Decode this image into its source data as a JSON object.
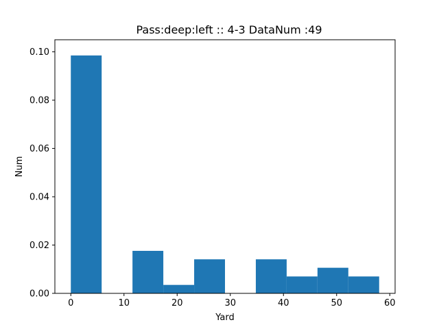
{
  "chart_data": {
    "type": "bar",
    "title": "Pass:deep:left :: 4-3    DataNum :49",
    "xlabel": "Yard",
    "ylabel": "Num",
    "xlim": [
      -3,
      61
    ],
    "ylim": [
      0,
      0.105
    ],
    "xticks": [
      0,
      10,
      20,
      30,
      40,
      50,
      60
    ],
    "yticks": [
      0.0,
      0.02,
      0.04,
      0.06,
      0.08,
      0.1
    ],
    "ytick_labels": [
      "0.00",
      "0.02",
      "0.04",
      "0.06",
      "0.08",
      "0.10"
    ],
    "bins": [
      {
        "x0": 0.0,
        "x1": 5.8,
        "value": 0.0985
      },
      {
        "x0": 5.8,
        "x1": 11.6,
        "value": 0.0
      },
      {
        "x0": 11.6,
        "x1": 17.4,
        "value": 0.0176
      },
      {
        "x0": 17.4,
        "x1": 23.2,
        "value": 0.0035
      },
      {
        "x0": 23.2,
        "x1": 29.0,
        "value": 0.0141
      },
      {
        "x0": 29.0,
        "x1": 34.8,
        "value": 0.0
      },
      {
        "x0": 34.8,
        "x1": 40.6,
        "value": 0.0141
      },
      {
        "x0": 40.6,
        "x1": 46.4,
        "value": 0.007
      },
      {
        "x0": 46.4,
        "x1": 52.2,
        "value": 0.0106
      },
      {
        "x0": 52.2,
        "x1": 58.0,
        "value": 0.007
      }
    ],
    "bar_color": "#1f77b4",
    "grid": false,
    "legend": "none"
  }
}
